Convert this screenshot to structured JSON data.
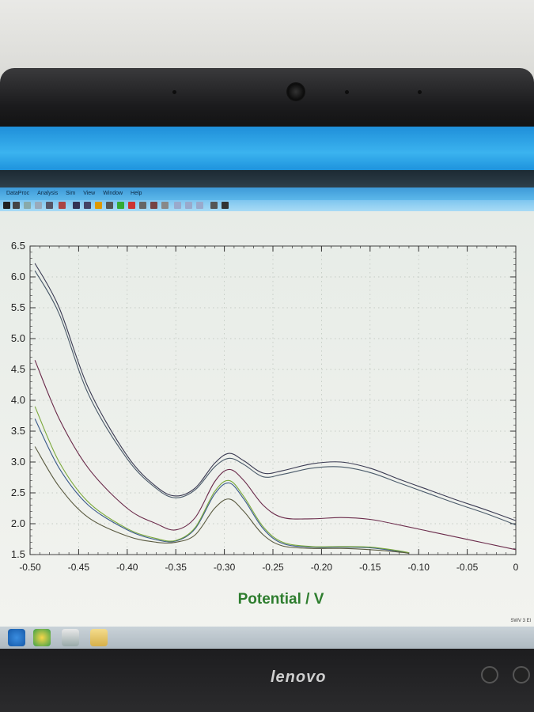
{
  "menubar": {
    "items": [
      "DataProc",
      "Analysis",
      "Sim",
      "View",
      "Window",
      "Help"
    ]
  },
  "statusbar": {
    "text": "SWV   3 El"
  },
  "taskbar": {
    "icons": [
      "ie-icon",
      "media-icon",
      "app-icon",
      "folder-icon"
    ]
  },
  "monitor": {
    "brand": "lenovo"
  },
  "colors": {
    "plot_bg": "#eef1ec",
    "axis": "#333333",
    "xlabel": "#2e7d2e"
  },
  "chart_data": {
    "type": "line",
    "title": "",
    "xlabel": "Potential / V",
    "ylabel": "",
    "xlim": [
      -0.5,
      0.0
    ],
    "ylim": [
      1.5,
      6.5
    ],
    "x_ticks": [
      "-0.50",
      "-0.45",
      "-0.40",
      "-0.35",
      "-0.30",
      "-0.25",
      "-0.20",
      "-0.15",
      "-0.10",
      "-0.05",
      "0"
    ],
    "x_tick_values": [
      -0.5,
      -0.45,
      -0.4,
      -0.35,
      -0.3,
      -0.25,
      -0.2,
      -0.15,
      -0.1,
      -0.05,
      0.0
    ],
    "y_ticks": [
      "1.5",
      "2.0",
      "2.5",
      "3.0",
      "3.5",
      "4.0",
      "4.5",
      "5.0",
      "5.5",
      "6.0",
      "6.5"
    ],
    "y_tick_values": [
      1.5,
      2.0,
      2.5,
      3.0,
      3.5,
      4.0,
      4.5,
      5.0,
      5.5,
      6.0,
      6.5
    ],
    "grid": true,
    "legend": "none",
    "series": [
      {
        "color": "#3a3a52",
        "x": [
          -0.495,
          -0.47,
          -0.44,
          -0.4,
          -0.37,
          -0.35,
          -0.33,
          -0.31,
          -0.295,
          -0.28,
          -0.26,
          -0.24,
          -0.21,
          -0.18,
          -0.15,
          -0.12,
          -0.09,
          -0.06,
          -0.03,
          0.0
        ],
        "y": [
          6.22,
          5.5,
          4.2,
          3.1,
          2.6,
          2.45,
          2.58,
          2.98,
          3.14,
          3.02,
          2.82,
          2.86,
          2.97,
          3.0,
          2.9,
          2.72,
          2.55,
          2.38,
          2.22,
          2.05
        ]
      },
      {
        "color": "#4a5a6a",
        "x": [
          -0.495,
          -0.47,
          -0.44,
          -0.4,
          -0.37,
          -0.35,
          -0.33,
          -0.31,
          -0.295,
          -0.28,
          -0.26,
          -0.24,
          -0.21,
          -0.18,
          -0.15,
          -0.12,
          -0.09,
          -0.06,
          -0.03,
          0.0
        ],
        "y": [
          6.1,
          5.4,
          4.1,
          3.05,
          2.57,
          2.42,
          2.55,
          2.92,
          3.06,
          2.96,
          2.76,
          2.8,
          2.9,
          2.92,
          2.83,
          2.66,
          2.49,
          2.32,
          2.16,
          1.98
        ]
      },
      {
        "color": "#6a2a4a",
        "x": [
          -0.495,
          -0.47,
          -0.44,
          -0.4,
          -0.37,
          -0.35,
          -0.33,
          -0.31,
          -0.295,
          -0.28,
          -0.26,
          -0.24,
          -0.21,
          -0.18,
          -0.15,
          -0.12,
          -0.09,
          -0.06,
          -0.03,
          0.0
        ],
        "y": [
          4.65,
          3.7,
          2.9,
          2.25,
          2.0,
          1.9,
          2.1,
          2.68,
          2.88,
          2.7,
          2.3,
          2.1,
          2.08,
          2.1,
          2.07,
          1.98,
          1.88,
          1.78,
          1.68,
          1.58
        ]
      },
      {
        "color": "#3a5a8a",
        "x": [
          -0.495,
          -0.47,
          -0.44,
          -0.4,
          -0.37,
          -0.35,
          -0.33,
          -0.31,
          -0.295,
          -0.28,
          -0.26,
          -0.24,
          -0.21,
          -0.18,
          -0.15,
          -0.12,
          -0.11
        ],
        "y": [
          3.7,
          2.9,
          2.3,
          1.9,
          1.74,
          1.72,
          1.92,
          2.48,
          2.66,
          2.4,
          1.92,
          1.68,
          1.62,
          1.62,
          1.61,
          1.55,
          1.52
        ]
      },
      {
        "color": "#7aa83a",
        "x": [
          -0.495,
          -0.47,
          -0.44,
          -0.4,
          -0.37,
          -0.35,
          -0.33,
          -0.31,
          -0.295,
          -0.28,
          -0.26,
          -0.24,
          -0.21,
          -0.18,
          -0.15,
          -0.12,
          -0.11
        ],
        "y": [
          3.9,
          3.0,
          2.35,
          1.92,
          1.76,
          1.73,
          1.94,
          2.52,
          2.7,
          2.44,
          1.95,
          1.7,
          1.63,
          1.63,
          1.62,
          1.56,
          1.53
        ]
      },
      {
        "color": "#5a5a40",
        "x": [
          -0.495,
          -0.47,
          -0.44,
          -0.4,
          -0.37,
          -0.35,
          -0.33,
          -0.31,
          -0.295,
          -0.28,
          -0.26,
          -0.24,
          -0.21,
          -0.18,
          -0.15,
          -0.12,
          -0.11
        ],
        "y": [
          3.25,
          2.6,
          2.1,
          1.8,
          1.7,
          1.7,
          1.82,
          2.25,
          2.4,
          2.2,
          1.82,
          1.64,
          1.6,
          1.6,
          1.58,
          1.54,
          1.52
        ]
      }
    ]
  }
}
